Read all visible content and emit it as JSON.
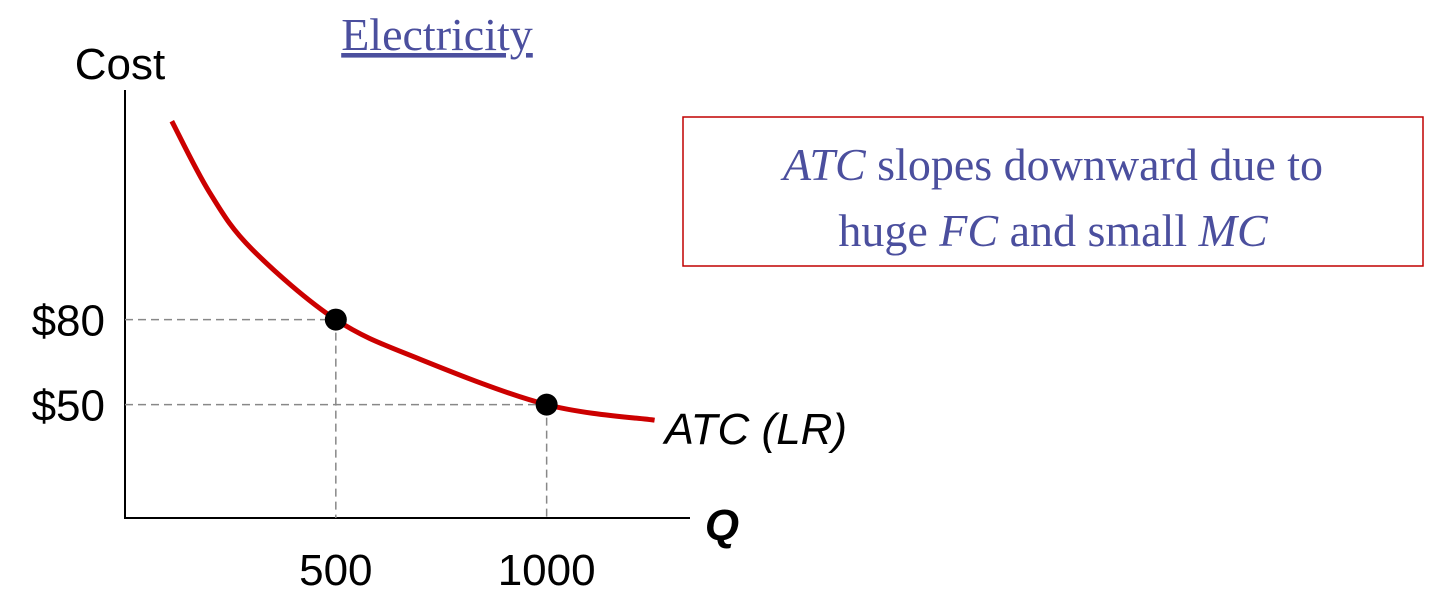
{
  "chart_data": {
    "type": "line",
    "title": "Electricity",
    "y_label": "Cost",
    "x_label": "Q",
    "x": [
      111,
      200,
      300,
      500,
      700,
      1000,
      1256
    ],
    "series": [
      {
        "name": "ATC (LR)",
        "color": "#cc0000",
        "values": [
          150,
          125,
          105,
          80,
          66,
          50,
          44.5
        ]
      }
    ],
    "markers": {
      "x": [
        500,
        1000
      ],
      "values": [
        80,
        50
      ],
      "color": "#000000"
    },
    "xlim": [
      0,
      1340
    ],
    "ylim": [
      10,
      161
    ],
    "xticks": [
      500,
      1000
    ],
    "yticks": [
      {
        "value": 80,
        "label": "$80"
      },
      {
        "value": 50,
        "label": "$50"
      }
    ],
    "annotation": [
      [
        {
          "text": "ATC",
          "italic": true
        },
        {
          "text": " slopes downward due to"
        }
      ],
      [
        {
          "text": "huge "
        },
        {
          "text": "FC",
          "italic": true
        },
        {
          "text": " and small "
        },
        {
          "text": "MC",
          "italic": true
        }
      ]
    ]
  }
}
